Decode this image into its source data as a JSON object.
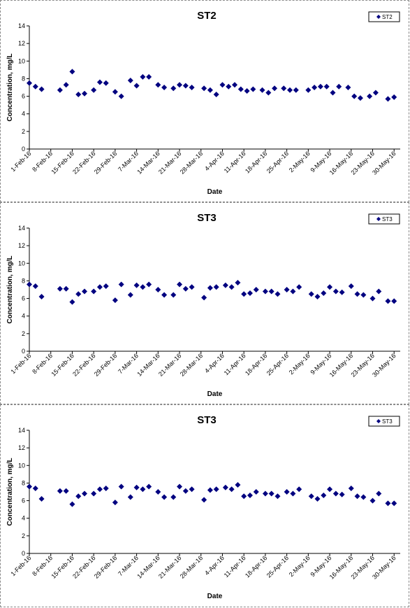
{
  "chart_data": [
    {
      "type": "scatter",
      "title": "ST2",
      "xlabel": "Date",
      "ylabel": "Concentration, mg/L",
      "ylim": [
        0,
        14
      ],
      "yticks": [
        0,
        2,
        4,
        6,
        8,
        10,
        12,
        14
      ],
      "xlim": [
        "2016-02-01",
        "2016-06-01"
      ],
      "xticks": [
        "1-Feb-16",
        "8-Feb-16",
        "15-Feb-16",
        "22-Feb-16",
        "29-Feb-16",
        "7-Mar-16",
        "14-Mar-16",
        "21-Mar-16",
        "28-Mar-16",
        "4-Apr-16",
        "11-Apr-16",
        "18-Apr-16",
        "25-Apr-16",
        "2-May-16",
        "9-May-16",
        "16-May-16",
        "23-May-16",
        "30-May-16"
      ],
      "grid": false,
      "legend": "top-right",
      "series": [
        {
          "name": "ST2",
          "color": "#000080",
          "points": [
            [
              "2016-02-01",
              7.5
            ],
            [
              "2016-02-03",
              7.1
            ],
            [
              "2016-02-05",
              6.8
            ],
            [
              "2016-02-11",
              6.7
            ],
            [
              "2016-02-13",
              7.3
            ],
            [
              "2016-02-15",
              8.8
            ],
            [
              "2016-02-17",
              6.2
            ],
            [
              "2016-02-19",
              6.3
            ],
            [
              "2016-02-22",
              6.7
            ],
            [
              "2016-02-24",
              7.6
            ],
            [
              "2016-02-26",
              7.5
            ],
            [
              "2016-02-29",
              6.5
            ],
            [
              "2016-03-02",
              6.0
            ],
            [
              "2016-03-05",
              7.8
            ],
            [
              "2016-03-07",
              7.2
            ],
            [
              "2016-03-09",
              8.2
            ],
            [
              "2016-03-11",
              8.2
            ],
            [
              "2016-03-14",
              7.3
            ],
            [
              "2016-03-16",
              7.0
            ],
            [
              "2016-03-19",
              6.9
            ],
            [
              "2016-03-21",
              7.3
            ],
            [
              "2016-03-23",
              7.2
            ],
            [
              "2016-03-25",
              7.0
            ],
            [
              "2016-03-29",
              6.9
            ],
            [
              "2016-03-31",
              6.7
            ],
            [
              "2016-04-02",
              6.2
            ],
            [
              "2016-04-04",
              7.3
            ],
            [
              "2016-04-06",
              7.1
            ],
            [
              "2016-04-08",
              7.3
            ],
            [
              "2016-04-10",
              6.8
            ],
            [
              "2016-04-12",
              6.6
            ],
            [
              "2016-04-14",
              6.8
            ],
            [
              "2016-04-17",
              6.7
            ],
            [
              "2016-04-19",
              6.4
            ],
            [
              "2016-04-21",
              6.9
            ],
            [
              "2016-04-24",
              6.9
            ],
            [
              "2016-04-26",
              6.7
            ],
            [
              "2016-04-28",
              6.7
            ],
            [
              "2016-05-02",
              6.7
            ],
            [
              "2016-05-04",
              7.0
            ],
            [
              "2016-05-06",
              7.1
            ],
            [
              "2016-05-08",
              7.1
            ],
            [
              "2016-05-10",
              6.4
            ],
            [
              "2016-05-12",
              7.1
            ],
            [
              "2016-05-15",
              7.0
            ],
            [
              "2016-05-17",
              6.0
            ],
            [
              "2016-05-19",
              5.8
            ],
            [
              "2016-05-22",
              6.0
            ],
            [
              "2016-05-24",
              6.4
            ],
            [
              "2016-05-28",
              5.7
            ],
            [
              "2016-05-30",
              5.9
            ]
          ]
        }
      ]
    },
    {
      "type": "scatter",
      "title": "ST3",
      "xlabel": "Date",
      "ylabel": "Concentration, mg/L",
      "ylim": [
        0,
        14
      ],
      "yticks": [
        0,
        2,
        4,
        6,
        8,
        10,
        12,
        14
      ],
      "xlim": [
        "2016-02-01",
        "2016-06-01"
      ],
      "xticks": [
        "1-Feb-16",
        "8-Feb-16",
        "15-Feb-16",
        "22-Feb-16",
        "29-Feb-16",
        "7-Mar-16",
        "14-Mar-16",
        "21-Mar-16",
        "28-Mar-16",
        "4-Apr-16",
        "11-Apr-16",
        "18-Apr-16",
        "25-Apr-16",
        "2-May-16",
        "9-May-16",
        "16-May-16",
        "23-May-16",
        "30-May-16"
      ],
      "grid": false,
      "legend": "top-right",
      "series": [
        {
          "name": "ST3",
          "color": "#000080",
          "points": [
            [
              "2016-02-01",
              7.6
            ],
            [
              "2016-02-03",
              7.4
            ],
            [
              "2016-02-05",
              6.2
            ],
            [
              "2016-02-11",
              7.1
            ],
            [
              "2016-02-13",
              7.1
            ],
            [
              "2016-02-15",
              5.6
            ],
            [
              "2016-02-17",
              6.5
            ],
            [
              "2016-02-19",
              6.8
            ],
            [
              "2016-02-22",
              6.8
            ],
            [
              "2016-02-24",
              7.3
            ],
            [
              "2016-02-26",
              7.4
            ],
            [
              "2016-02-29",
              5.8
            ],
            [
              "2016-03-02",
              7.6
            ],
            [
              "2016-03-05",
              6.4
            ],
            [
              "2016-03-07",
              7.5
            ],
            [
              "2016-03-09",
              7.3
            ],
            [
              "2016-03-11",
              7.6
            ],
            [
              "2016-03-14",
              7.0
            ],
            [
              "2016-03-16",
              6.4
            ],
            [
              "2016-03-19",
              6.4
            ],
            [
              "2016-03-21",
              7.6
            ],
            [
              "2016-03-23",
              7.1
            ],
            [
              "2016-03-25",
              7.3
            ],
            [
              "2016-03-29",
              6.1
            ],
            [
              "2016-03-31",
              7.2
            ],
            [
              "2016-04-02",
              7.3
            ],
            [
              "2016-04-05",
              7.5
            ],
            [
              "2016-04-07",
              7.3
            ],
            [
              "2016-04-09",
              7.8
            ],
            [
              "2016-04-11",
              6.5
            ],
            [
              "2016-04-13",
              6.6
            ],
            [
              "2016-04-15",
              7.0
            ],
            [
              "2016-04-18",
              6.8
            ],
            [
              "2016-04-20",
              6.8
            ],
            [
              "2016-04-22",
              6.5
            ],
            [
              "2016-04-25",
              7.0
            ],
            [
              "2016-04-27",
              6.8
            ],
            [
              "2016-04-29",
              7.3
            ],
            [
              "2016-05-03",
              6.5
            ],
            [
              "2016-05-05",
              6.2
            ],
            [
              "2016-05-07",
              6.6
            ],
            [
              "2016-05-09",
              7.3
            ],
            [
              "2016-05-11",
              6.8
            ],
            [
              "2016-05-13",
              6.7
            ],
            [
              "2016-05-16",
              7.4
            ],
            [
              "2016-05-18",
              6.5
            ],
            [
              "2016-05-20",
              6.4
            ],
            [
              "2016-05-23",
              6.0
            ],
            [
              "2016-05-25",
              6.8
            ],
            [
              "2016-05-28",
              5.7
            ],
            [
              "2016-05-30",
              5.7
            ]
          ]
        }
      ]
    },
    {
      "type": "scatter",
      "title": "ST3",
      "xlabel": "Date",
      "ylabel": "Concentration, mg/L",
      "ylim": [
        0,
        14
      ],
      "yticks": [
        0,
        2,
        4,
        6,
        8,
        10,
        12,
        14
      ],
      "xlim": [
        "2016-02-01",
        "2016-06-01"
      ],
      "xticks": [
        "1-Feb-16",
        "8-Feb-16",
        "15-Feb-16",
        "22-Feb-16",
        "29-Feb-16",
        "7-Mar-16",
        "14-Mar-16",
        "21-Mar-16",
        "28-Mar-16",
        "4-Apr-16",
        "11-Apr-16",
        "18-Apr-16",
        "25-Apr-16",
        "2-May-16",
        "9-May-16",
        "16-May-16",
        "23-May-16",
        "30-May-16"
      ],
      "grid": false,
      "legend": "top-right",
      "series": [
        {
          "name": "ST3",
          "color": "#000080",
          "points": [
            [
              "2016-02-01",
              7.6
            ],
            [
              "2016-02-03",
              7.4
            ],
            [
              "2016-02-05",
              6.2
            ],
            [
              "2016-02-11",
              7.1
            ],
            [
              "2016-02-13",
              7.1
            ],
            [
              "2016-02-15",
              5.6
            ],
            [
              "2016-02-17",
              6.5
            ],
            [
              "2016-02-19",
              6.8
            ],
            [
              "2016-02-22",
              6.8
            ],
            [
              "2016-02-24",
              7.3
            ],
            [
              "2016-02-26",
              7.4
            ],
            [
              "2016-02-29",
              5.8
            ],
            [
              "2016-03-02",
              7.6
            ],
            [
              "2016-03-05",
              6.4
            ],
            [
              "2016-03-07",
              7.5
            ],
            [
              "2016-03-09",
              7.3
            ],
            [
              "2016-03-11",
              7.6
            ],
            [
              "2016-03-14",
              7.0
            ],
            [
              "2016-03-16",
              6.4
            ],
            [
              "2016-03-19",
              6.4
            ],
            [
              "2016-03-21",
              7.6
            ],
            [
              "2016-03-23",
              7.1
            ],
            [
              "2016-03-25",
              7.3
            ],
            [
              "2016-03-29",
              6.1
            ],
            [
              "2016-03-31",
              7.2
            ],
            [
              "2016-04-02",
              7.3
            ],
            [
              "2016-04-05",
              7.5
            ],
            [
              "2016-04-07",
              7.3
            ],
            [
              "2016-04-09",
              7.8
            ],
            [
              "2016-04-11",
              6.5
            ],
            [
              "2016-04-13",
              6.6
            ],
            [
              "2016-04-15",
              7.0
            ],
            [
              "2016-04-18",
              6.8
            ],
            [
              "2016-04-20",
              6.8
            ],
            [
              "2016-04-22",
              6.5
            ],
            [
              "2016-04-25",
              7.0
            ],
            [
              "2016-04-27",
              6.8
            ],
            [
              "2016-04-29",
              7.3
            ],
            [
              "2016-05-03",
              6.5
            ],
            [
              "2016-05-05",
              6.2
            ],
            [
              "2016-05-07",
              6.6
            ],
            [
              "2016-05-09",
              7.3
            ],
            [
              "2016-05-11",
              6.8
            ],
            [
              "2016-05-13",
              6.7
            ],
            [
              "2016-05-16",
              7.4
            ],
            [
              "2016-05-18",
              6.5
            ],
            [
              "2016-05-20",
              6.4
            ],
            [
              "2016-05-23",
              6.0
            ],
            [
              "2016-05-25",
              6.8
            ],
            [
              "2016-05-28",
              5.7
            ],
            [
              "2016-05-30",
              5.7
            ]
          ]
        }
      ]
    }
  ]
}
